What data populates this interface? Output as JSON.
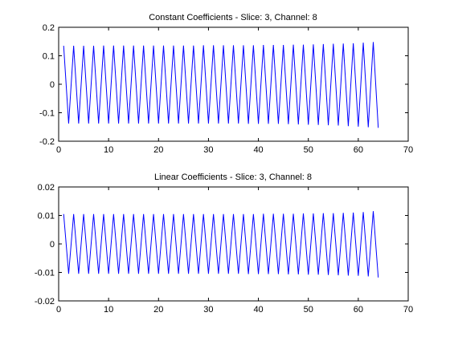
{
  "chart_data": [
    {
      "type": "line",
      "title": "Constant Coefficients - Slice: 3, Channel: 8",
      "xlim": [
        0,
        70
      ],
      "ylim": [
        -0.2,
        0.2
      ],
      "xticks": [
        0,
        10,
        20,
        30,
        40,
        50,
        60,
        70
      ],
      "yticks": [
        -0.2,
        -0.1,
        0,
        0.1,
        0.2
      ],
      "xtick_labels": [
        "0",
        "10",
        "20",
        "30",
        "40",
        "50",
        "60",
        "70"
      ],
      "ytick_labels": [
        "-0.2",
        "-0.1",
        "0",
        "0.1",
        "0.2"
      ],
      "grid": false,
      "series": [
        {
          "color": "#0000ff",
          "x": [
            1,
            2,
            3,
            4,
            5,
            6,
            7,
            8,
            9,
            10,
            11,
            12,
            13,
            14,
            15,
            16,
            17,
            18,
            19,
            20,
            21,
            22,
            23,
            24,
            25,
            26,
            27,
            28,
            29,
            30,
            31,
            32,
            33,
            34,
            35,
            36,
            37,
            38,
            39,
            40,
            41,
            42,
            43,
            44,
            45,
            46,
            47,
            48,
            49,
            50,
            51,
            52,
            53,
            54,
            55,
            56,
            57,
            58,
            59,
            60,
            61,
            62,
            63,
            64
          ],
          "y": [
            0.135,
            -0.138,
            0.135,
            -0.138,
            0.135,
            -0.138,
            0.135,
            -0.138,
            0.136,
            -0.138,
            0.136,
            -0.138,
            0.136,
            -0.138,
            0.136,
            -0.138,
            0.136,
            -0.138,
            0.136,
            -0.138,
            0.136,
            -0.138,
            0.136,
            -0.138,
            0.136,
            -0.138,
            0.136,
            -0.138,
            0.137,
            -0.138,
            0.137,
            -0.138,
            0.137,
            -0.138,
            0.137,
            -0.138,
            0.137,
            -0.139,
            0.137,
            -0.139,
            0.138,
            -0.139,
            0.138,
            -0.139,
            0.138,
            -0.14,
            0.139,
            -0.141,
            0.139,
            -0.142,
            0.14,
            -0.143,
            0.141,
            -0.144,
            0.142,
            -0.145,
            0.143,
            -0.147,
            0.144,
            -0.149,
            0.146,
            -0.151,
            0.148,
            -0.153
          ]
        }
      ]
    },
    {
      "type": "line",
      "title": "Linear Coefficients - Slice: 3, Channel: 8",
      "xlim": [
        0,
        70
      ],
      "ylim": [
        -0.02,
        0.02
      ],
      "xticks": [
        0,
        10,
        20,
        30,
        40,
        50,
        60,
        70
      ],
      "yticks": [
        -0.02,
        -0.01,
        0,
        0.01,
        0.02
      ],
      "xtick_labels": [
        "0",
        "10",
        "20",
        "30",
        "40",
        "50",
        "60",
        "70"
      ],
      "ytick_labels": [
        "-0.02",
        "-0.01",
        "0",
        "0.01",
        "0.02"
      ],
      "grid": false,
      "series": [
        {
          "color": "#0000ff",
          "x": [
            1,
            2,
            3,
            4,
            5,
            6,
            7,
            8,
            9,
            10,
            11,
            12,
            13,
            14,
            15,
            16,
            17,
            18,
            19,
            20,
            21,
            22,
            23,
            24,
            25,
            26,
            27,
            28,
            29,
            30,
            31,
            32,
            33,
            34,
            35,
            36,
            37,
            38,
            39,
            40,
            41,
            42,
            43,
            44,
            45,
            46,
            47,
            48,
            49,
            50,
            51,
            52,
            53,
            54,
            55,
            56,
            57,
            58,
            59,
            60,
            61,
            62,
            63,
            64
          ],
          "y": [
            0.0105,
            -0.0105,
            0.0105,
            -0.0105,
            0.0105,
            -0.0105,
            0.0105,
            -0.0105,
            0.0105,
            -0.0105,
            0.0105,
            -0.0105,
            0.0105,
            -0.0105,
            0.0105,
            -0.0105,
            0.0105,
            -0.0105,
            0.0105,
            -0.0105,
            0.0105,
            -0.0105,
            0.0105,
            -0.0105,
            0.0105,
            -0.0105,
            0.0105,
            -0.0105,
            0.0105,
            -0.0105,
            0.0105,
            -0.0105,
            0.0105,
            -0.0105,
            0.0105,
            -0.0105,
            0.0105,
            -0.0106,
            0.0105,
            -0.0106,
            0.0106,
            -0.0106,
            0.0106,
            -0.0106,
            0.0106,
            -0.0107,
            0.0106,
            -0.0107,
            0.0107,
            -0.0108,
            0.0107,
            -0.0108,
            0.0108,
            -0.0109,
            0.0108,
            -0.011,
            0.0109,
            -0.0111,
            0.011,
            -0.0112,
            0.0112,
            -0.0114,
            0.0115,
            -0.0118
          ]
        }
      ]
    }
  ]
}
